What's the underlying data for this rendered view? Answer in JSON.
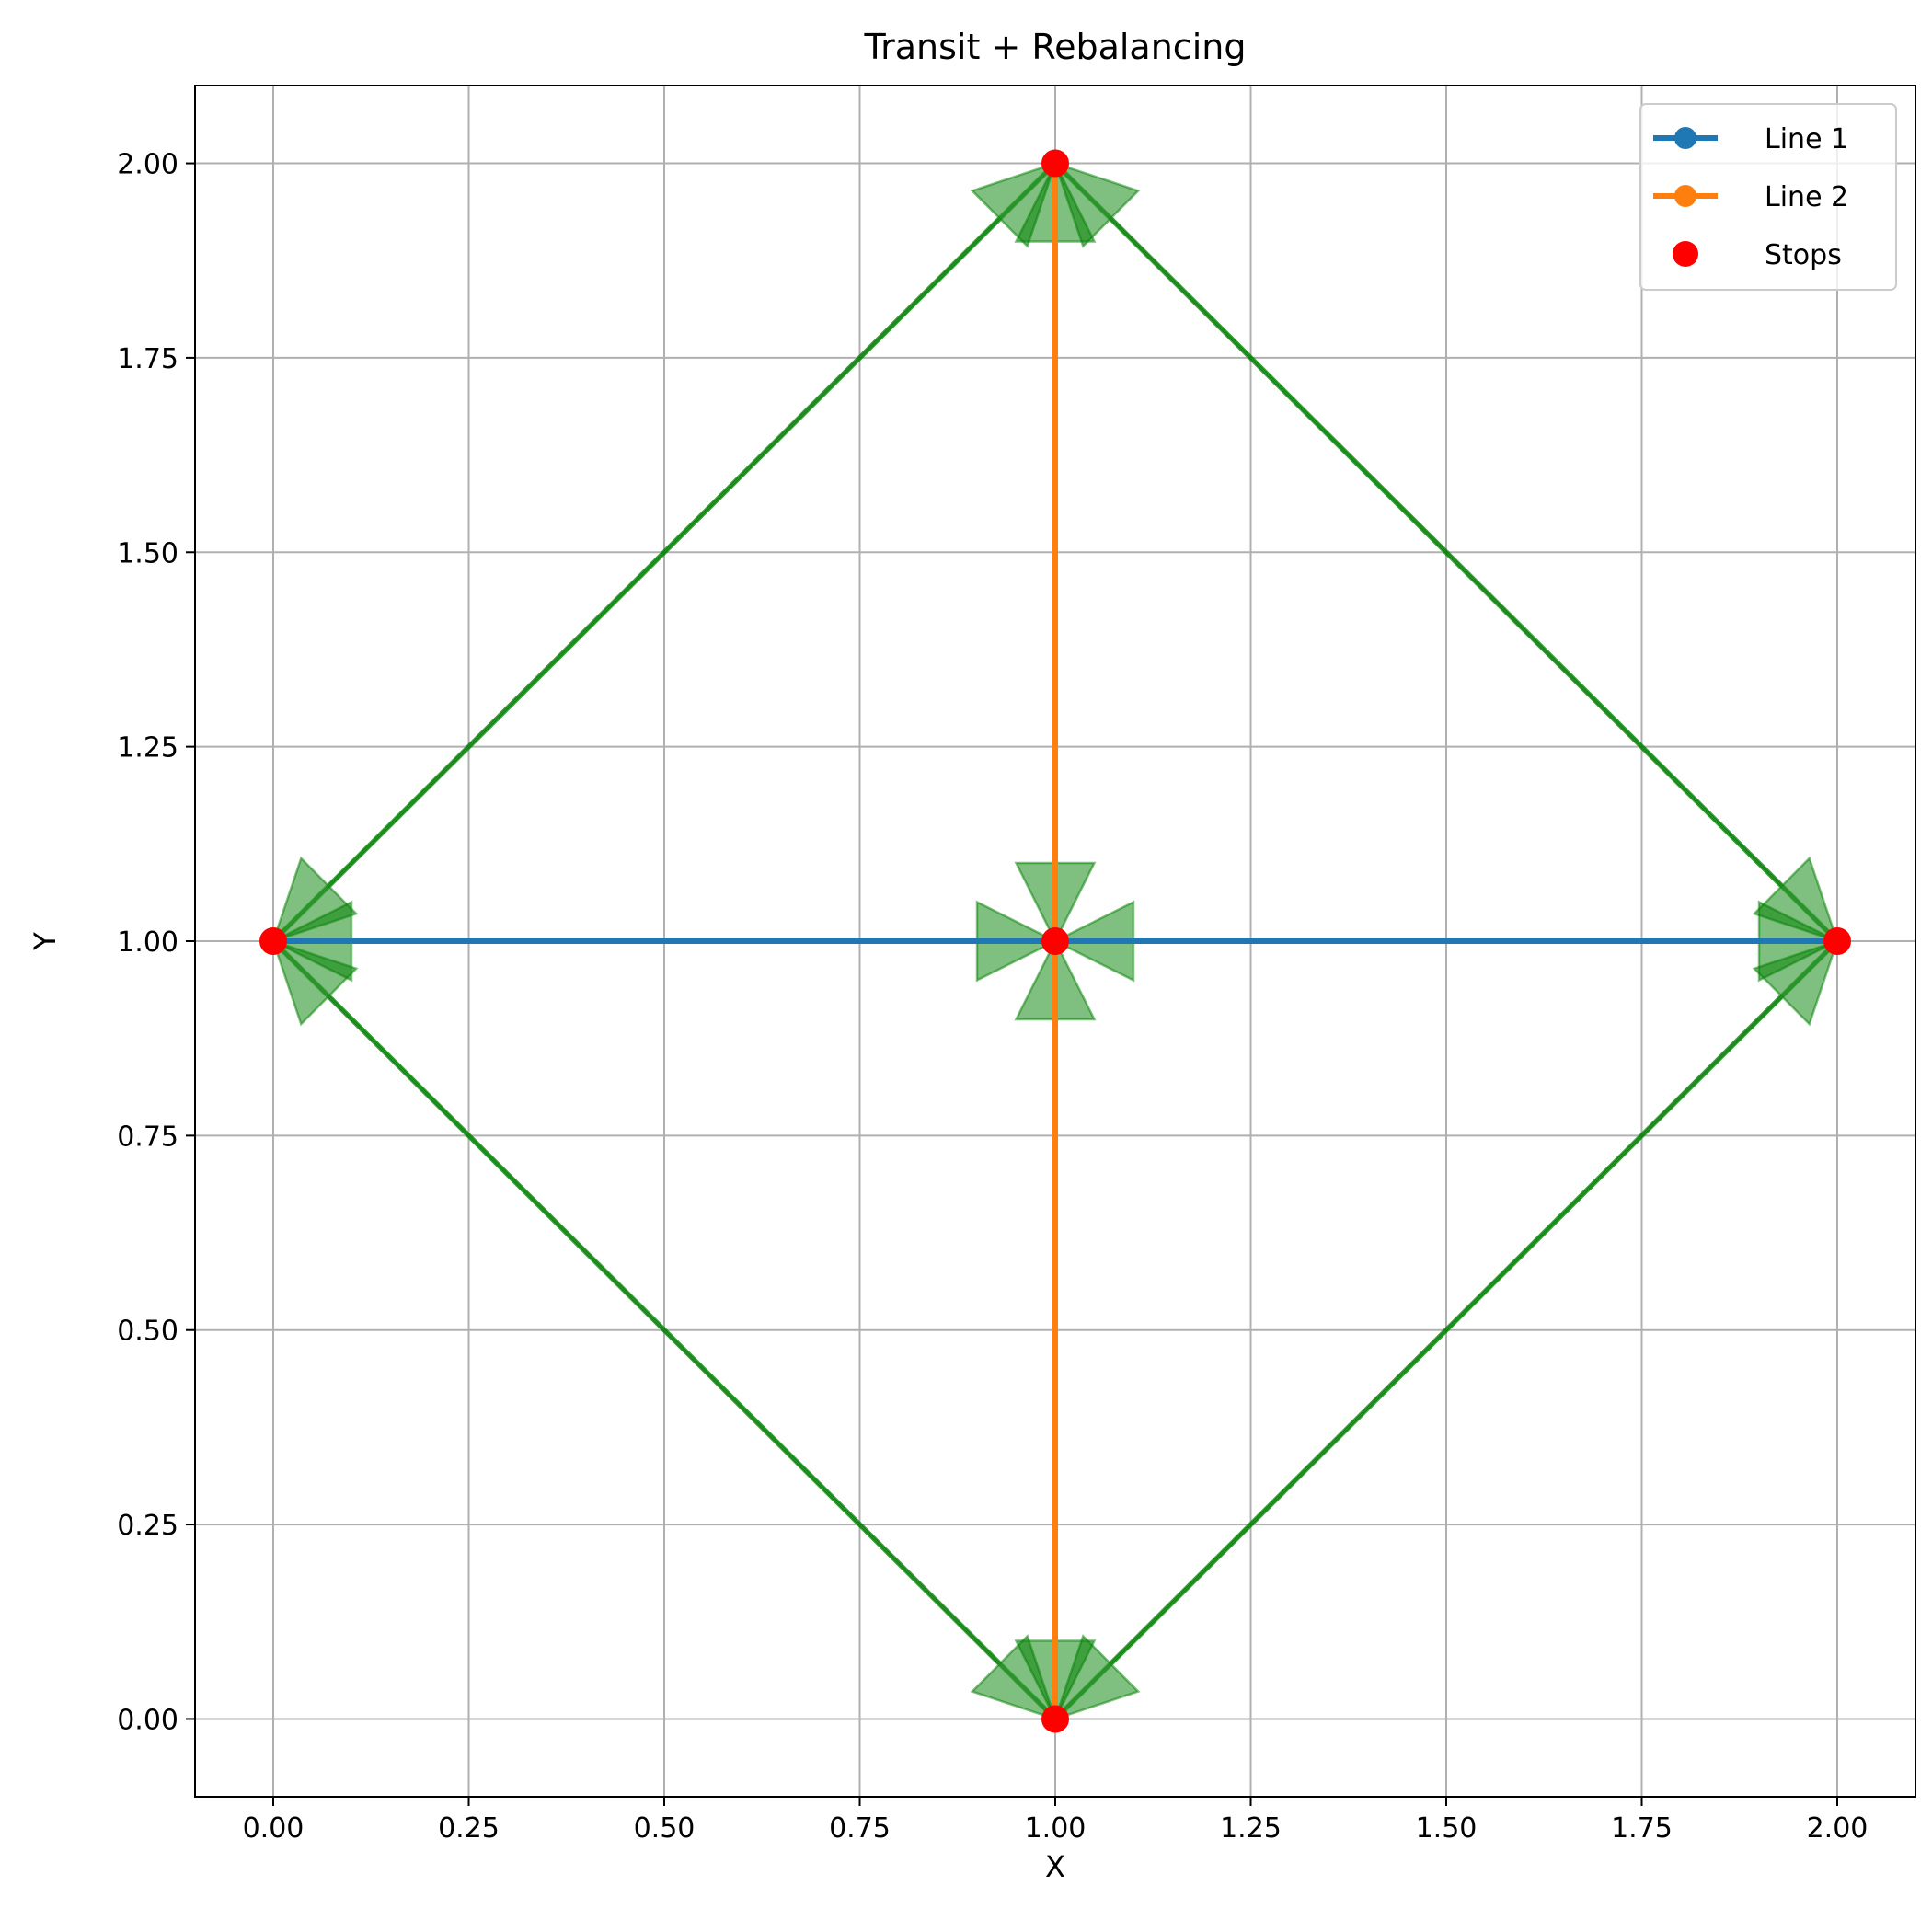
{
  "chart_data": {
    "type": "line",
    "title": "Transit + Rebalancing",
    "xlabel": "X",
    "ylabel": "Y",
    "xlim": [
      -0.1,
      2.1
    ],
    "ylim": [
      -0.1,
      2.1
    ],
    "xticks": [
      "0.00",
      "0.25",
      "0.50",
      "0.75",
      "1.00",
      "1.25",
      "1.50",
      "1.75",
      "2.00"
    ],
    "yticks": [
      "0.00",
      "0.25",
      "0.50",
      "0.75",
      "1.00",
      "1.25",
      "1.50",
      "1.75",
      "2.00"
    ],
    "grid": true,
    "legend_position": "top-right",
    "series": [
      {
        "name": "Line 1",
        "color": "#1f77b4",
        "points": [
          [
            0,
            1
          ],
          [
            1,
            1
          ],
          [
            2,
            1
          ]
        ]
      },
      {
        "name": "Line 2",
        "color": "#ff7f0e",
        "points": [
          [
            1,
            0
          ],
          [
            1,
            1
          ],
          [
            1,
            2
          ]
        ]
      }
    ],
    "stops": {
      "name": "Stops",
      "color": "#ff0000",
      "points": [
        [
          0,
          1
        ],
        [
          1,
          1
        ],
        [
          2,
          1
        ],
        [
          1,
          0
        ],
        [
          1,
          2
        ]
      ]
    },
    "rebalancing": {
      "color": "#008000",
      "edges": [
        [
          [
            0,
            1
          ],
          [
            1,
            2
          ]
        ],
        [
          [
            1,
            2
          ],
          [
            0,
            1
          ]
        ],
        [
          [
            1,
            2
          ],
          [
            2,
            1
          ]
        ],
        [
          [
            2,
            1
          ],
          [
            1,
            2
          ]
        ],
        [
          [
            2,
            1
          ],
          [
            1,
            0
          ]
        ],
        [
          [
            1,
            0
          ],
          [
            2,
            1
          ]
        ],
        [
          [
            1,
            0
          ],
          [
            0,
            1
          ]
        ],
        [
          [
            0,
            1
          ],
          [
            1,
            0
          ]
        ],
        [
          [
            0,
            1
          ],
          [
            1,
            1
          ]
        ],
        [
          [
            1,
            1
          ],
          [
            0,
            1
          ]
        ],
        [
          [
            1,
            1
          ],
          [
            2,
            1
          ]
        ],
        [
          [
            2,
            1
          ],
          [
            1,
            1
          ]
        ],
        [
          [
            1,
            0
          ],
          [
            1,
            1
          ]
        ],
        [
          [
            1,
            1
          ],
          [
            1,
            0
          ]
        ],
        [
          [
            1,
            1
          ],
          [
            1,
            2
          ]
        ],
        [
          [
            1,
            2
          ],
          [
            1,
            1
          ]
        ]
      ]
    }
  }
}
